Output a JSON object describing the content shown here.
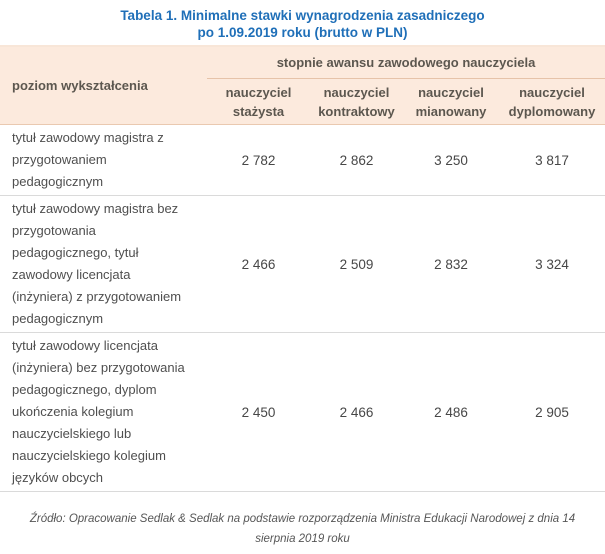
{
  "title": {
    "line1": "Tabela 1. Minimalne stawki wynagrodzenia zasadniczego",
    "line2": "po 1.09.2019 roku (brutto w PLN)"
  },
  "chart_data": {
    "type": "table",
    "title": "Tabela 1. Minimalne stawki wynagrodzenia zasadniczego po 1.09.2019 roku (brutto w PLN)",
    "row_header_label": "poziom wykształcenia",
    "group_header": "stopnie awansu zawodowego nauczyciela",
    "columns": [
      {
        "label": "nauczyciel stażysta",
        "line1": "nauczyciel",
        "line2": "stażysta"
      },
      {
        "label": "nauczyciel kontraktowy",
        "line1": "nauczyciel",
        "line2": "kontraktowy"
      },
      {
        "label": "nauczyciel mianowany",
        "line1": "nauczyciel",
        "line2": "mianowany"
      },
      {
        "label": "nauczyciel dyplomowany",
        "line1": "nauczyciel",
        "line2": "dyplomowany"
      }
    ],
    "rows": [
      {
        "label": "tytuł zawodowy magistra z\nprzygotowaniem\npedagogicznym",
        "label_plain": "tytuł zawodowy magistra z przygotowaniem pedagogicznym",
        "values": [
          "2 782",
          "2 862",
          "3 250",
          "3 817"
        ],
        "values_num": [
          2782,
          2862,
          3250,
          3817
        ]
      },
      {
        "label": "tytuł zawodowy magistra bez\nprzygotowania\npedagogicznego, tytuł\nzawodowy licencjata\n(inżyniera) z przygotowaniem\npedagogicznym",
        "label_plain": "tytuł zawodowy magistra bez przygotowania pedagogicznego, tytuł zawodowy licencjata (inżyniera) z przygotowaniem pedagogicznym",
        "values": [
          "2 466",
          "2 509",
          "2 832",
          "3 324"
        ],
        "values_num": [
          2466,
          2509,
          2832,
          3324
        ]
      },
      {
        "label": "tytuł zawodowy licencjata\n(inżyniera) bez przygotowania\npedagogicznego, dyplom\nukończenia kolegium\nnauczycielskiego lub\nnauczycielskiego kolegium\njęzyków obcych",
        "label_plain": "tytuł zawodowy licencjata (inżyniera) bez przygotowania pedagogicznego, dyplom ukończenia kolegium nauczycielskiego lub nauczycielskiego kolegium języków obcych",
        "values": [
          "2 450",
          "2 466",
          "2 486",
          "2 905"
        ],
        "values_num": [
          2450,
          2466,
          2486,
          2905
        ]
      }
    ]
  },
  "source": {
    "line1": "Źródło: Opracowanie Sedlak & Sedlak na podstawie rozporządzenia Ministra Edukacji Narodowej z dnia 14",
    "line2": "sierpnia 2019 roku"
  },
  "colors": {
    "title_blue": "#1f6fb8",
    "header_bg": "#fceadd",
    "header_text": "#5c574f",
    "header_divider": "#e6c3a9",
    "body_text": "#4f4f4f",
    "row_divider": "#dadada"
  }
}
